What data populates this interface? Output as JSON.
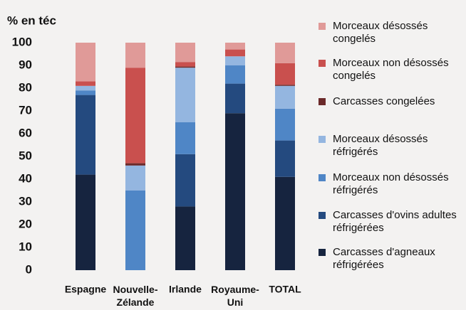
{
  "chart_data": {
    "type": "stacked_bar",
    "y_label": "% en téc",
    "categories": [
      "Espagne",
      "Nouvelle-Zélande",
      "Irlande",
      "Royaume-Uni",
      "TOTAL"
    ],
    "series": [
      {
        "name": "Carcasses d'agneaux réfrigérées",
        "color": "#16243f",
        "values": [
          42,
          0,
          28,
          69,
          41
        ]
      },
      {
        "name": "Carcasses d'ovins adultes réfrigérées",
        "color": "#244a7f",
        "values": [
          35,
          0,
          23,
          13,
          16
        ]
      },
      {
        "name": "Morceaux non désossés réfrigérés",
        "color": "#4f86c6",
        "values": [
          2,
          35,
          14,
          8,
          14
        ]
      },
      {
        "name": "Morceaux désossés réfrigérés",
        "color": "#94b6e0",
        "values": [
          2,
          11,
          24,
          4,
          10
        ]
      },
      {
        "name": "Carcasses congelées",
        "color": "#6b2a2a",
        "values": [
          0,
          1,
          0.5,
          0,
          0.5
        ]
      },
      {
        "name": "Morceaux non désossés congelés",
        "color": "#c9504e",
        "values": [
          2,
          42,
          2,
          3,
          9.5
        ]
      },
      {
        "name": "Morceaux désossés congelés",
        "color": "#e09a98",
        "values": [
          17,
          11,
          8.5,
          3,
          9
        ]
      }
    ],
    "ylim": [
      0,
      100
    ],
    "yticks": [
      0,
      10,
      20,
      30,
      40,
      50,
      60,
      70,
      80,
      90,
      100
    ]
  }
}
